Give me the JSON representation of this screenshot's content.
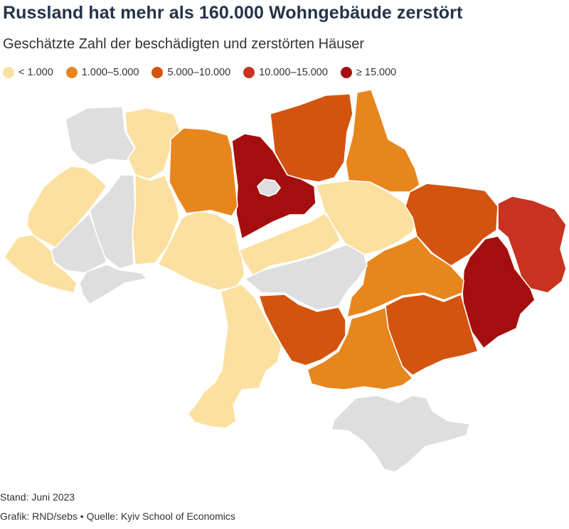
{
  "title": "Russland hat mehr als 160.000 Wohngebäude zerstört",
  "subtitle": "Geschätzte Zahl der beschädigten und zerstörten Häuser",
  "legend": [
    {
      "label": "< 1.000",
      "color": "#fce0a0"
    },
    {
      "label": "1.000–5.000",
      "color": "#e8861e"
    },
    {
      "label": "5.000–10.000",
      "color": "#d3540f"
    },
    {
      "label": "10.000–15.000",
      "color": "#c83220"
    },
    {
      "label": "≥ 15.000",
      "color": "#a50e0e"
    }
  ],
  "no_data_color": "#dedede",
  "footer": {
    "stand": "Stand: Juni 2023",
    "credits": "Grafik: RND/sebs • Quelle: Kyiv School of Economics"
  }
}
